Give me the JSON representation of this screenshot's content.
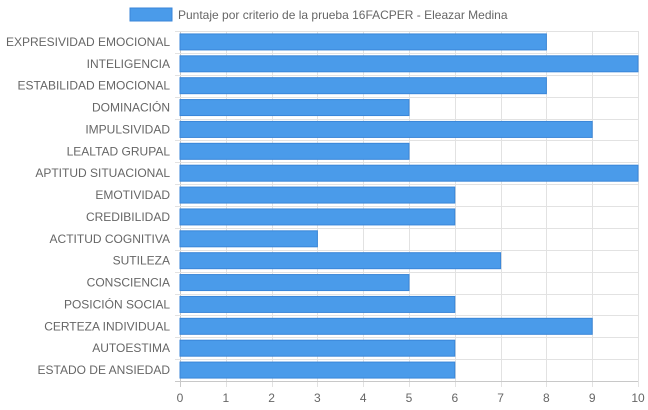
{
  "chart_data": {
    "type": "bar",
    "orientation": "horizontal",
    "categories": [
      "EXPRESIVIDAD EMOCIONAL",
      "INTELIGENCIA",
      "ESTABILIDAD EMOCIONAL",
      "DOMINACIÓN",
      "IMPULSIVIDAD",
      "LEALTAD GRUPAL",
      "APTITUD SITUACIONAL",
      "EMOTIVIDAD",
      "CREDIBILIDAD",
      "ACTITUD COGNITIVA",
      "SUTILEZA",
      "CONSCIENCIA",
      "POSICIÓN SOCIAL",
      "CERTEZA INDIVIDUAL",
      "AUTOESTIMA",
      "ESTADO DE ANSIEDAD"
    ],
    "series": [
      {
        "name": "Puntaje por criterio de la prueba 16FACPER - Eleazar Medina",
        "values": [
          8,
          10,
          8,
          5,
          9,
          5,
          10,
          6,
          6,
          3,
          7,
          5,
          6,
          9,
          6,
          6
        ],
        "color": "#4a9bea",
        "border_color": "#3a86d8"
      }
    ],
    "x_ticks": [
      "0",
      "1",
      "2",
      "3",
      "4",
      "5",
      "6",
      "7",
      "8",
      "9",
      "10"
    ],
    "xlim": [
      0,
      10
    ],
    "grid": true,
    "legend_position": "top-center"
  }
}
